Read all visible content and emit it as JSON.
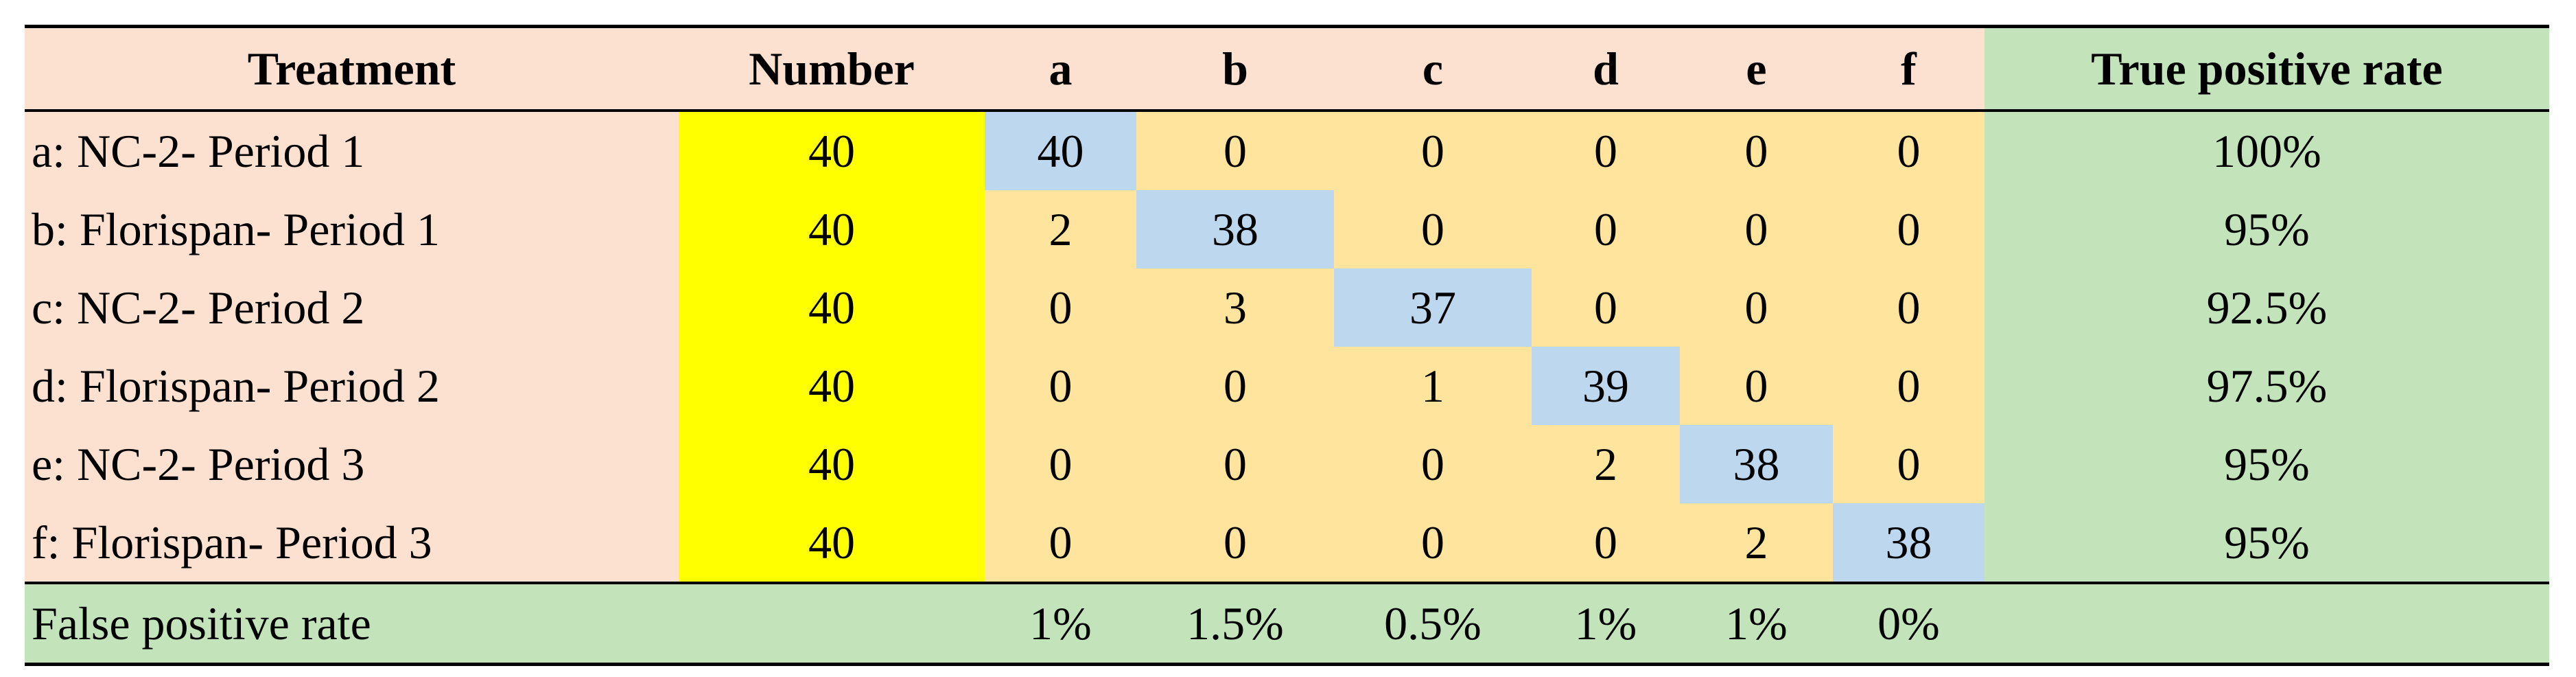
{
  "table": {
    "header": [
      "Treatment",
      "Number",
      "a",
      "b",
      "c",
      "d",
      "e",
      "f",
      "True positive rate"
    ],
    "rows": [
      [
        "a: NC-2- Period 1",
        40,
        40,
        0,
        0,
        0,
        0,
        0,
        "100%"
      ],
      [
        "b: Florispan- Period 1",
        40,
        2,
        38,
        0,
        0,
        0,
        0,
        "95%"
      ],
      [
        "c: NC-2- Period 2",
        40,
        0,
        3,
        37,
        0,
        0,
        0,
        "92.5%"
      ],
      [
        "d: Florispan- Period 2",
        40,
        0,
        0,
        1,
        39,
        0,
        0,
        "97.5%"
      ],
      [
        "e: NC-2- Period 3",
        40,
        0,
        0,
        0,
        2,
        38,
        0,
        "95%"
      ],
      [
        "f: Florispan- Period 3",
        40,
        0,
        0,
        0,
        0,
        2,
        38,
        "95%"
      ]
    ],
    "footer": {
      "label": "False positive rate",
      "values": [
        "1%",
        "1.5%",
        "0.5%",
        "1%",
        "1%",
        "0%"
      ]
    }
  }
}
